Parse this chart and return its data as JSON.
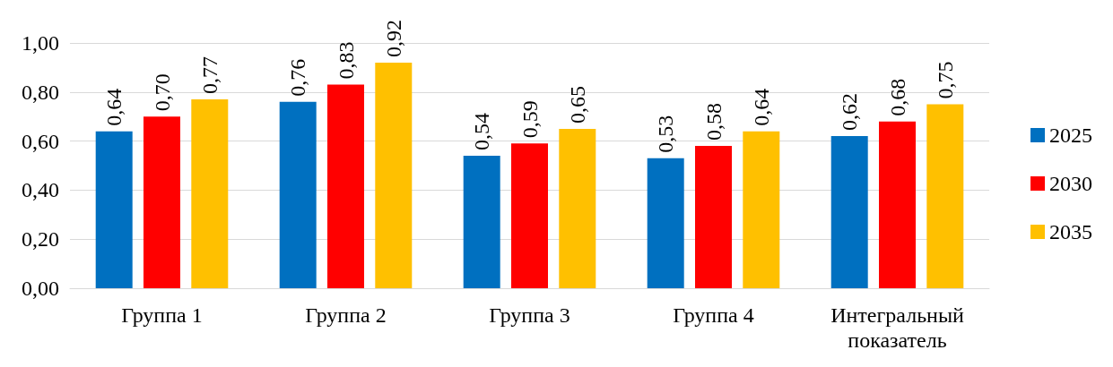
{
  "chart_data": {
    "type": "bar",
    "categories": [
      "Группа 1",
      "Группа 2",
      "Группа 3",
      "Группа 4",
      "Интегральный показатель"
    ],
    "series": [
      {
        "name": "2025",
        "color": "#0070c0",
        "values": [
          0.64,
          0.76,
          0.54,
          0.53,
          0.62
        ],
        "value_labels": [
          "0,64",
          "0,76",
          "0,54",
          "0,53",
          "0,62"
        ]
      },
      {
        "name": "2030",
        "color": "#ff0000",
        "values": [
          0.7,
          0.83,
          0.59,
          0.58,
          0.68
        ],
        "value_labels": [
          "0,70",
          "0,83",
          "0,59",
          "0,58",
          "0,68"
        ]
      },
      {
        "name": "2035",
        "color": "#ffc000",
        "values": [
          0.77,
          0.92,
          0.65,
          0.64,
          0.75
        ],
        "value_labels": [
          "0,77",
          "0,92",
          "0,65",
          "0,64",
          "0,75"
        ]
      }
    ],
    "ylim": [
      0,
      1
    ],
    "yticks": [
      {
        "value": 0,
        "label": "0,00"
      },
      {
        "value": 0.2,
        "label": "0,20"
      },
      {
        "value": 0.4,
        "label": "0,40"
      },
      {
        "value": 0.6,
        "label": "0,60"
      },
      {
        "value": 0.8,
        "label": "0,80"
      },
      {
        "value": 1,
        "label": "1,00"
      }
    ],
    "grid": "y",
    "legend": "right"
  }
}
